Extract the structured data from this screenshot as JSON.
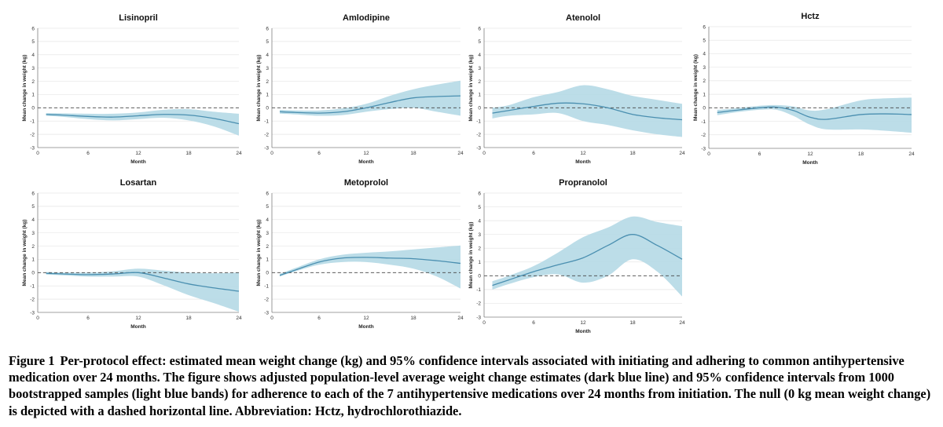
{
  "caption": {
    "label": "Figure 1",
    "text": "Per-protocol effect: estimated mean weight change (kg) and 95% confidence intervals associated with initiating and adhering to common antihypertensive medication over 24 months. The figure shows adjusted population-level average weight change estimates (dark blue line) and 95% confidence intervals from 1000 bootstrapped samples (light blue bands) for adherence to each of the 7 antihypertensive medications over 24 months from initiation. The null (0 kg mean weight change) is depicted with a dashed horizontal line. Abbreviation: Hctz, hydrochlorothiazide."
  },
  "colors": {
    "line": "#4a8fb0",
    "band": "#b5d9e6",
    "null_line": "#444444",
    "grid": "#e6e6e6"
  },
  "chart_data": [
    {
      "type": "line",
      "title": "Lisinopril",
      "xlabel": "Month",
      "ylabel": "Mean change in weight (kg)",
      "xlim": [
        0,
        24
      ],
      "ylim": [
        -3,
        6
      ],
      "xticks": [
        0,
        6,
        12,
        18,
        24
      ],
      "yticks": [
        -3,
        -2,
        -1,
        0,
        1,
        2,
        3,
        4,
        5,
        6
      ],
      "x": [
        1,
        3,
        6,
        9,
        12,
        15,
        18,
        21,
        24
      ],
      "estimate": [
        -0.5,
        -0.55,
        -0.65,
        -0.7,
        -0.6,
        -0.5,
        -0.55,
        -0.8,
        -1.2
      ],
      "ci_lower": [
        -0.6,
        -0.68,
        -0.85,
        -0.95,
        -0.85,
        -0.75,
        -0.95,
        -1.4,
        -2.1
      ],
      "ci_upper": [
        -0.4,
        -0.42,
        -0.45,
        -0.45,
        -0.35,
        -0.15,
        -0.1,
        -0.3,
        -0.45
      ]
    },
    {
      "type": "line",
      "title": "Amlodipine",
      "xlabel": "Month",
      "ylabel": "Mean change in weight (kg)",
      "xlim": [
        0,
        24
      ],
      "ylim": [
        -3,
        6
      ],
      "xticks": [
        0,
        6,
        12,
        18,
        24
      ],
      "yticks": [
        -3,
        -2,
        -1,
        0,
        1,
        2,
        3,
        4,
        5,
        6
      ],
      "x": [
        1,
        3,
        6,
        9,
        12,
        15,
        18,
        21,
        24
      ],
      "estimate": [
        -0.3,
        -0.35,
        -0.4,
        -0.3,
        0.0,
        0.4,
        0.75,
        0.85,
        0.9
      ],
      "ci_lower": [
        -0.45,
        -0.5,
        -0.6,
        -0.55,
        -0.3,
        -0.1,
        0.0,
        -0.3,
        -0.6
      ],
      "ci_upper": [
        -0.15,
        -0.2,
        -0.2,
        -0.05,
        0.3,
        0.9,
        1.4,
        1.75,
        2.05
      ]
    },
    {
      "type": "line",
      "title": "Atenolol",
      "xlabel": "Month",
      "ylabel": "Mean change in weight (kg)",
      "xlim": [
        0,
        24
      ],
      "ylim": [
        -3,
        6
      ],
      "xticks": [
        0,
        6,
        12,
        18,
        24
      ],
      "yticks": [
        -3,
        -2,
        -1,
        0,
        1,
        2,
        3,
        4,
        5,
        6
      ],
      "x": [
        1,
        3,
        6,
        9,
        12,
        15,
        18,
        21,
        24
      ],
      "estimate": [
        -0.4,
        -0.2,
        0.1,
        0.35,
        0.3,
        0.0,
        -0.5,
        -0.75,
        -0.9
      ],
      "ci_lower": [
        -0.8,
        -0.6,
        -0.5,
        -0.4,
        -1.0,
        -1.3,
        -1.7,
        -2.0,
        -2.2
      ],
      "ci_upper": [
        0.0,
        0.2,
        0.8,
        1.2,
        1.7,
        1.4,
        0.9,
        0.6,
        0.3
      ]
    },
    {
      "type": "line",
      "title": "Hctz",
      "xlabel": "Month",
      "ylabel": "Mean change in weight (kg)",
      "xlim": [
        0,
        24
      ],
      "ylim": [
        -3,
        6
      ],
      "xticks": [
        0,
        6,
        12,
        18,
        24
      ],
      "yticks": [
        -3,
        -2,
        -1,
        0,
        1,
        2,
        3,
        4,
        5,
        6
      ],
      "x": [
        1,
        3,
        6,
        8,
        10,
        12,
        14,
        18,
        21,
        24
      ],
      "estimate": [
        -0.35,
        -0.2,
        0.0,
        0.05,
        -0.2,
        -0.7,
        -0.85,
        -0.5,
        -0.45,
        -0.5
      ],
      "ci_lower": [
        -0.55,
        -0.35,
        -0.15,
        -0.15,
        -0.6,
        -1.25,
        -1.6,
        -1.6,
        -1.7,
        -1.85
      ],
      "ci_upper": [
        -0.15,
        -0.05,
        0.15,
        0.2,
        0.1,
        -0.2,
        -0.1,
        0.55,
        0.7,
        0.75
      ]
    },
    {
      "type": "line",
      "title": "Losartan",
      "xlabel": "Month",
      "ylabel": "Mean change in weight (kg)",
      "xlim": [
        0,
        24
      ],
      "ylim": [
        -3,
        6
      ],
      "xticks": [
        0,
        6,
        12,
        18,
        24
      ],
      "yticks": [
        -3,
        -2,
        -1,
        0,
        1,
        2,
        3,
        4,
        5,
        6
      ],
      "x": [
        1,
        3,
        6,
        9,
        12,
        15,
        18,
        21,
        24
      ],
      "estimate": [
        -0.05,
        -0.1,
        -0.15,
        -0.1,
        0.0,
        -0.4,
        -0.85,
        -1.15,
        -1.4
      ],
      "ci_lower": [
        -0.15,
        -0.2,
        -0.3,
        -0.3,
        -0.3,
        -0.95,
        -1.7,
        -2.3,
        -2.95
      ],
      "ci_upper": [
        0.05,
        0.0,
        0.0,
        0.1,
        0.3,
        0.15,
        0.0,
        -0.05,
        0.0
      ]
    },
    {
      "type": "line",
      "title": "Metoprolol",
      "xlabel": "Month",
      "ylabel": "Mean change in weight (kg)",
      "xlim": [
        0,
        24
      ],
      "ylim": [
        -3,
        6
      ],
      "xticks": [
        0,
        6,
        12,
        18,
        24
      ],
      "yticks": [
        -3,
        -2,
        -1,
        0,
        1,
        2,
        3,
        4,
        5,
        6
      ],
      "x": [
        1,
        3,
        6,
        9,
        12,
        15,
        18,
        21,
        24
      ],
      "estimate": [
        -0.2,
        0.2,
        0.8,
        1.1,
        1.15,
        1.1,
        1.05,
        0.9,
        0.7
      ],
      "ci_lower": [
        -0.3,
        0.1,
        0.6,
        0.8,
        0.8,
        0.6,
        0.3,
        -0.3,
        -1.2
      ],
      "ci_upper": [
        -0.1,
        0.35,
        1.0,
        1.35,
        1.5,
        1.6,
        1.75,
        1.9,
        2.05
      ]
    },
    {
      "type": "line",
      "title": "Propranolol",
      "xlabel": "Month",
      "ylabel": "Mean change in weight (kg)",
      "xlim": [
        0,
        24
      ],
      "ylim": [
        -3,
        6
      ],
      "xticks": [
        0,
        6,
        12,
        18,
        24
      ],
      "yticks": [
        -3,
        -2,
        -1,
        0,
        1,
        2,
        3,
        4,
        5,
        6
      ],
      "x": [
        1,
        3,
        6,
        9,
        12,
        15,
        18,
        21,
        24
      ],
      "estimate": [
        -0.7,
        -0.3,
        0.3,
        0.8,
        1.3,
        2.2,
        3.0,
        2.2,
        1.2
      ],
      "ci_lower": [
        -1.0,
        -0.6,
        -0.1,
        0.1,
        -0.5,
        0.0,
        1.2,
        0.3,
        -1.5
      ],
      "ci_upper": [
        -0.4,
        0.0,
        0.7,
        1.7,
        2.8,
        3.5,
        4.3,
        3.9,
        3.6
      ]
    }
  ]
}
